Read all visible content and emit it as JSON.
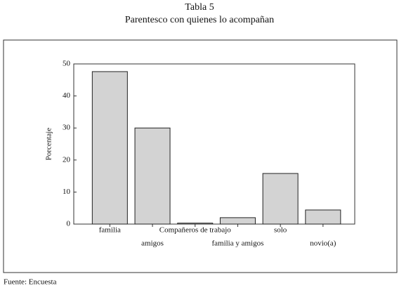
{
  "chart_data": {
    "type": "bar",
    "title": "Tabla 5",
    "subtitle": "Parentesco con quienes lo acompañan",
    "y_label": "Porcentaje",
    "source": "Fuente: Encuesta",
    "categories": [
      "familia",
      "amigos",
      "Compañeros de trabajo",
      "familia y amigos",
      "solo",
      "novio(a)"
    ],
    "values": [
      47.6,
      30,
      0.3,
      2,
      15.8,
      4.4
    ],
    "color": "#d3d3d3",
    "ylim": [
      0,
      50
    ],
    "yticks": [
      0,
      10,
      20,
      30,
      40,
      50
    ],
    "grid": false
  }
}
